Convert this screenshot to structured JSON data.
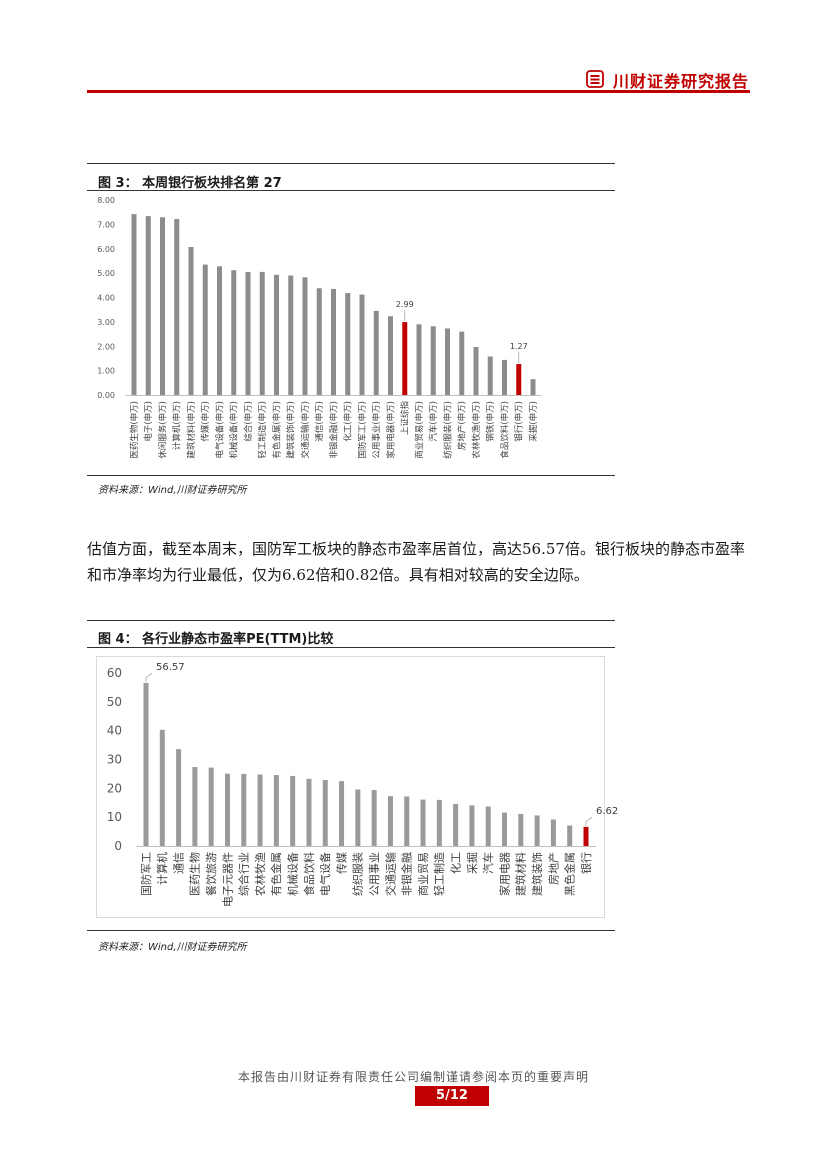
{
  "header": {
    "title": "川财证券研究报告",
    "brand_color": "#c00000"
  },
  "figure3": {
    "title": "图 3： 本周银行板块排名第 27",
    "source": "资料来源：Wind,川财证券研究所"
  },
  "paragraph": {
    "text": "估值方面，截至本周末，国防军工板块的静态市盈率居首位，高达56.57倍。银行板块的静态市盈率和市净率均为行业最低，仅为6.62倍和0.82倍。具有相对较高的安全边际。"
  },
  "figure4": {
    "title": "图 4： 各行业静态市盈率PE(TTM)比较",
    "source": "资料来源：Wind,川财证券研究所"
  },
  "footer": {
    "disclaimer": "本报告由川财证券有限责任公司编制谨请参阅本页的重要声明",
    "page": "5/12"
  },
  "chart_data": [
    {
      "type": "bar",
      "ylim": [
        0,
        8
      ],
      "yticks": [
        "0.00",
        "1.00",
        "2.00",
        "3.00",
        "4.00",
        "5.00",
        "6.00",
        "7.00",
        "8.00"
      ],
      "bar_color": "#8c8c8c",
      "highlight_color": "#c00000",
      "categories": [
        "医药生物(申万)",
        "电子(申万)",
        "休闲服务(申万)",
        "计算机(申万)",
        "建筑材料(申万)",
        "传媒(申万)",
        "电气设备(申万)",
        "机械设备(申万)",
        "综合(申万)",
        "轻工制造(申万)",
        "有色金属(申万)",
        "建筑装饰(申万)",
        "交通运输(申万)",
        "通信(申万)",
        "非银金融(申万)",
        "化工(申万)",
        "国防军工(申万)",
        "公用事业(申万)",
        "家用电器(申万)",
        "上证综指",
        "商业贸易(申万)",
        "汽车(申万)",
        "纺织服装(申万)",
        "房地产(申万)",
        "农林牧渔(申万)",
        "钢铁(申万)",
        "食品饮料(申万)",
        "银行(申万)",
        "采掘(申万)"
      ],
      "values": [
        7.42,
        7.34,
        7.29,
        7.22,
        6.07,
        5.35,
        5.28,
        5.12,
        5.05,
        5.05,
        4.93,
        4.9,
        4.83,
        4.38,
        4.35,
        4.18,
        4.12,
        3.45,
        3.23,
        2.99,
        2.9,
        2.82,
        2.73,
        2.6,
        1.97,
        1.58,
        1.44,
        1.27,
        0.65
      ],
      "highlight": [
        "上证综指",
        "银行(申万)"
      ],
      "data_labels": {
        "上证综指": "2.99",
        "银行(申万)": "1.27"
      }
    },
    {
      "type": "bar",
      "ylim": [
        0,
        60
      ],
      "yticks": [
        "0",
        "10",
        "20",
        "30",
        "40",
        "50",
        "60"
      ],
      "bar_color": "#9a9a9a",
      "highlight_color": "#c00000",
      "categories": [
        "国防军工",
        "计算机",
        "通信",
        "医药生物",
        "餐饮旅游",
        "电子元器件",
        "综合行业",
        "农林牧渔",
        "有色金属",
        "机械设备",
        "食品饮料",
        "电气设备",
        "传媒",
        "纺织服装",
        "公用事业",
        "交通运输",
        "非银金融",
        "商业贸易",
        "轻工制造",
        "化工",
        "采掘",
        "汽车",
        "家用电器",
        "建筑材料",
        "建筑装饰",
        "房地产",
        "黑色金属",
        "银行"
      ],
      "values": [
        56.57,
        40.3,
        33.6,
        27.4,
        27.2,
        25.1,
        25.0,
        24.8,
        24.6,
        24.3,
        23.3,
        22.9,
        22.5,
        19.6,
        19.4,
        17.3,
        17.2,
        16.1,
        16.0,
        14.6,
        14.1,
        13.7,
        11.6,
        11.1,
        10.6,
        9.2,
        7.1,
        6.62
      ],
      "highlight": [
        "银行"
      ],
      "data_labels": {
        "国防军工": "56.57",
        "银行": "6.62"
      }
    }
  ]
}
